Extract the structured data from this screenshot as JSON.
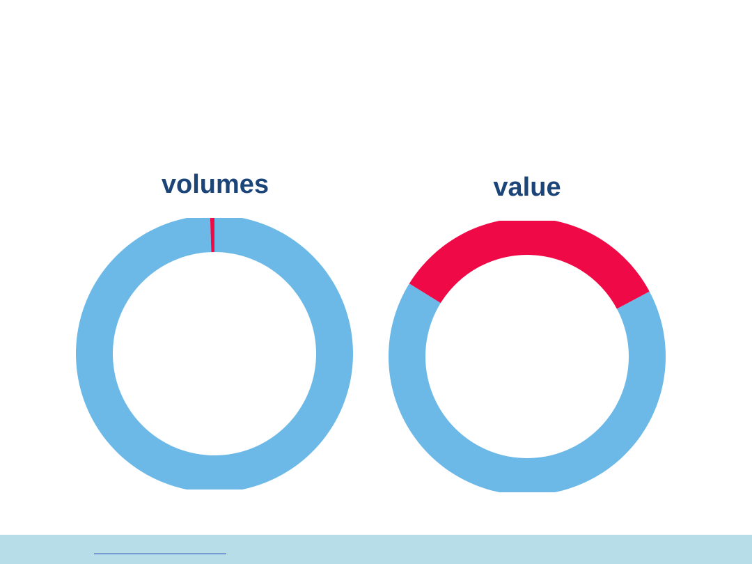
{
  "colors": {
    "title": "#1b4478",
    "footer_bar": "#b7dee8",
    "footer_link": "#1f3fb8"
  },
  "footer": {
    "link_text": ""
  },
  "chart_data": [
    {
      "type": "pie",
      "style": "donut",
      "title": "volumes",
      "values": [
        99.5,
        0.5
      ],
      "colors": [
        "#6cb9e8",
        "#ef0946"
      ],
      "start_angle_deg": 0
    },
    {
      "type": "pie",
      "style": "donut",
      "title": "value",
      "values": [
        66.6,
        33.4
      ],
      "colors": [
        "#6cb9e8",
        "#ef0946"
      ],
      "start_angle_deg": 62
    }
  ]
}
